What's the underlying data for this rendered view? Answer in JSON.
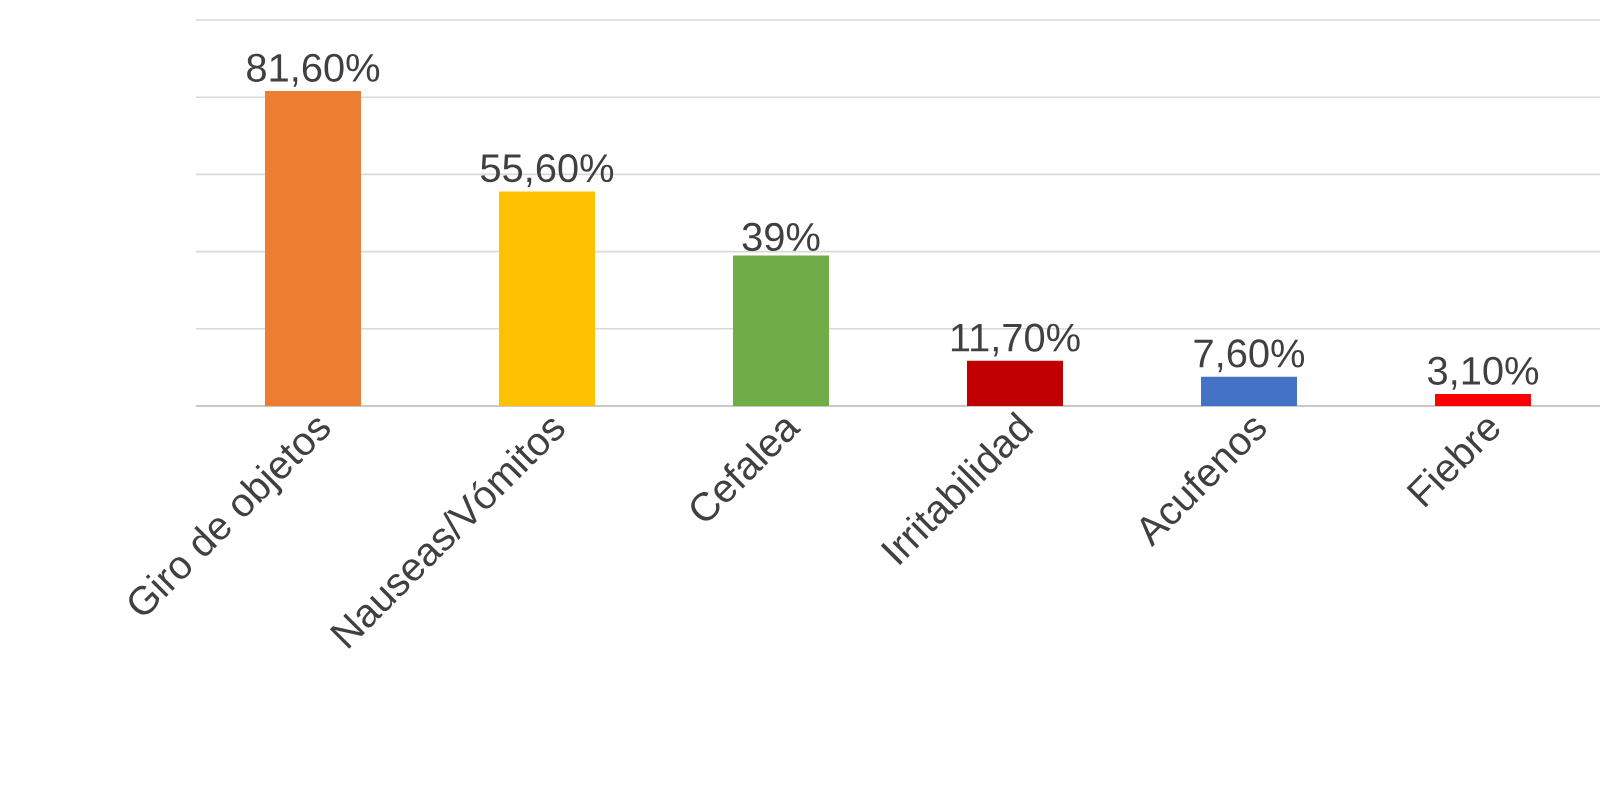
{
  "chart_data": {
    "type": "bar",
    "categories": [
      "Giro de objetos",
      "Nauseas/Vómitos",
      "Cefalea",
      "Irritabilidad",
      "Acufenos",
      "Fiebre"
    ],
    "values": [
      81.6,
      55.6,
      39,
      11.7,
      7.6,
      3.1
    ],
    "colors": [
      "#ed7d31",
      "#ffc000",
      "#70ad47",
      "#c00000",
      "#4472c4",
      "#ff0000"
    ],
    "value_labels": [
      "81,60%",
      "55,60%",
      "39%",
      "11,70%",
      "7,60%",
      "3,10%"
    ],
    "ylim": [
      0,
      100
    ],
    "yticks": [
      {
        "value": 0,
        "label": null
      },
      {
        "value": 20,
        "label": null
      },
      {
        "value": 40,
        "label": null
      },
      {
        "value": 60,
        "label": null
      },
      {
        "value": 80,
        "label": null
      },
      {
        "value": 100,
        "label": null
      }
    ],
    "grid": "y"
  }
}
